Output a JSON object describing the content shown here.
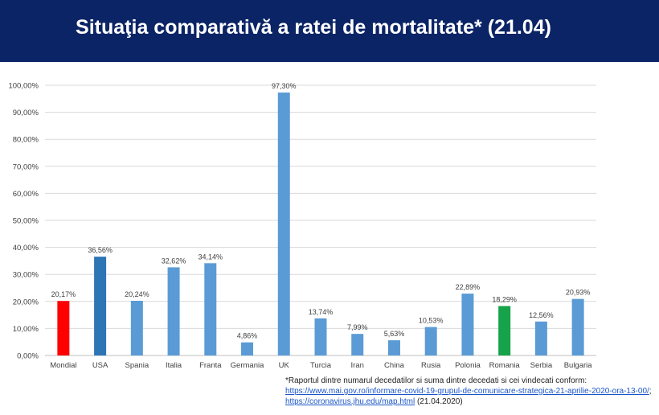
{
  "header": {
    "title": "Situaţia comparativă a ratei de mortalitate* (21.04)"
  },
  "chart_data": {
    "type": "bar",
    "categories": [
      "Mondial",
      "USA",
      "Spania",
      "Italia",
      "Franta",
      "Germania",
      "UK",
      "Turcia",
      "Iran",
      "China",
      "Rusia",
      "Polonia",
      "Romania",
      "Serbia",
      "Bulgaria"
    ],
    "values": [
      20.17,
      36.56,
      20.24,
      32.62,
      34.14,
      4.86,
      97.3,
      13.74,
      7.99,
      5.63,
      10.53,
      22.89,
      18.29,
      12.56,
      20.93
    ],
    "data_labels": [
      "20,17%",
      "36,56%",
      "20,24%",
      "32,62%",
      "34,14%",
      "4,86%",
      "97,30%",
      "13,74%",
      "7,99%",
      "5,63%",
      "10,53%",
      "22,89%",
      "18,29%",
      "12,56%",
      "20,93%"
    ],
    "colors": [
      "#ff0000",
      "#2e75b6",
      "#5b9bd5",
      "#5b9bd5",
      "#5b9bd5",
      "#5b9bd5",
      "#5b9bd5",
      "#5b9bd5",
      "#5b9bd5",
      "#5b9bd5",
      "#5b9bd5",
      "#5b9bd5",
      "#16a34a",
      "#5b9bd5",
      "#5b9bd5"
    ],
    "ylim": [
      0,
      100
    ],
    "yticks": [
      0,
      10,
      20,
      30,
      40,
      50,
      60,
      70,
      80,
      90,
      100
    ],
    "ytick_labels": [
      "0,00%",
      "10,00%",
      "20,00%",
      "30,00%",
      "40,00%",
      "50,00%",
      "60,00%",
      "70,00%",
      "80,00%",
      "90,00%",
      "100,00%"
    ],
    "grid": true,
    "xlabel": "",
    "ylabel": ""
  },
  "footnote": {
    "text": "*Raportul dintre  numarul decedatilor si suma dintre  decedati si cei  vindecati conform:",
    "link1": "https://www.mai.gov.ro/informare-covid-19-grupul-de-comunicare-strategica-21-aprilie-2020-ora-13-00/",
    "separator": ";",
    "link2": "https://coronavirus.jhu.edu/map.html",
    "date": " (21.04.2020)"
  }
}
